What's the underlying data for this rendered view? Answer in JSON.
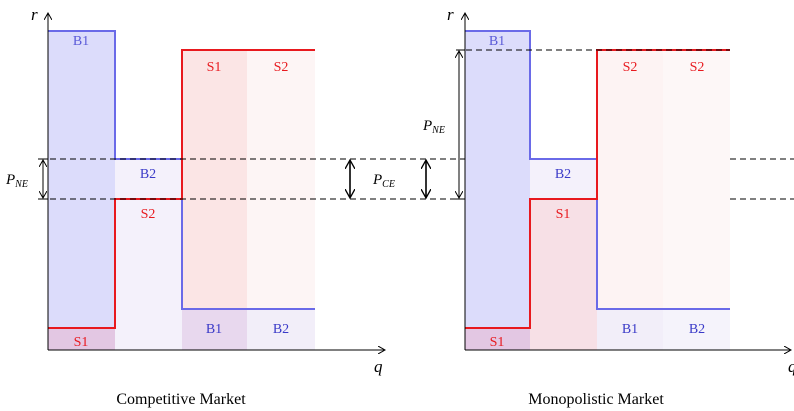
{
  "left_panel": {
    "caption": "Competitive Market",
    "axis_y": "r",
    "axis_x": "q",
    "bars": {
      "b1_top": "B1",
      "b2_mid": "B2",
      "s1_bottom": "S1",
      "s2_mid": "S2",
      "s1_top": "S1",
      "s2_top": "S2",
      "b1_bottom": "B1",
      "b2_bottom": "B2"
    },
    "gap_label": "P",
    "gap_label_sub": "NE"
  },
  "middle_label": {
    "text": "P",
    "sub": "CE"
  },
  "right_panel": {
    "caption": "Monopolistic Market",
    "axis_y": "r",
    "axis_x": "q",
    "bars": {
      "b1_top": "B1",
      "b2_mid": "B2",
      "s1_bottom": "S1",
      "s1_mid": "S1",
      "s2_top_a": "S2",
      "s2_top_b": "S2",
      "b1_bottom": "B1",
      "b2_bottom": "B2"
    },
    "gap_label": "P",
    "gap_label_sub": "NE"
  },
  "colors": {
    "buyer": "#6a6ae8",
    "seller": "#e8191e",
    "buyer_fill": "#dcdcfb",
    "seller_fill": "#fbe2e2",
    "axis": "#000000"
  }
}
